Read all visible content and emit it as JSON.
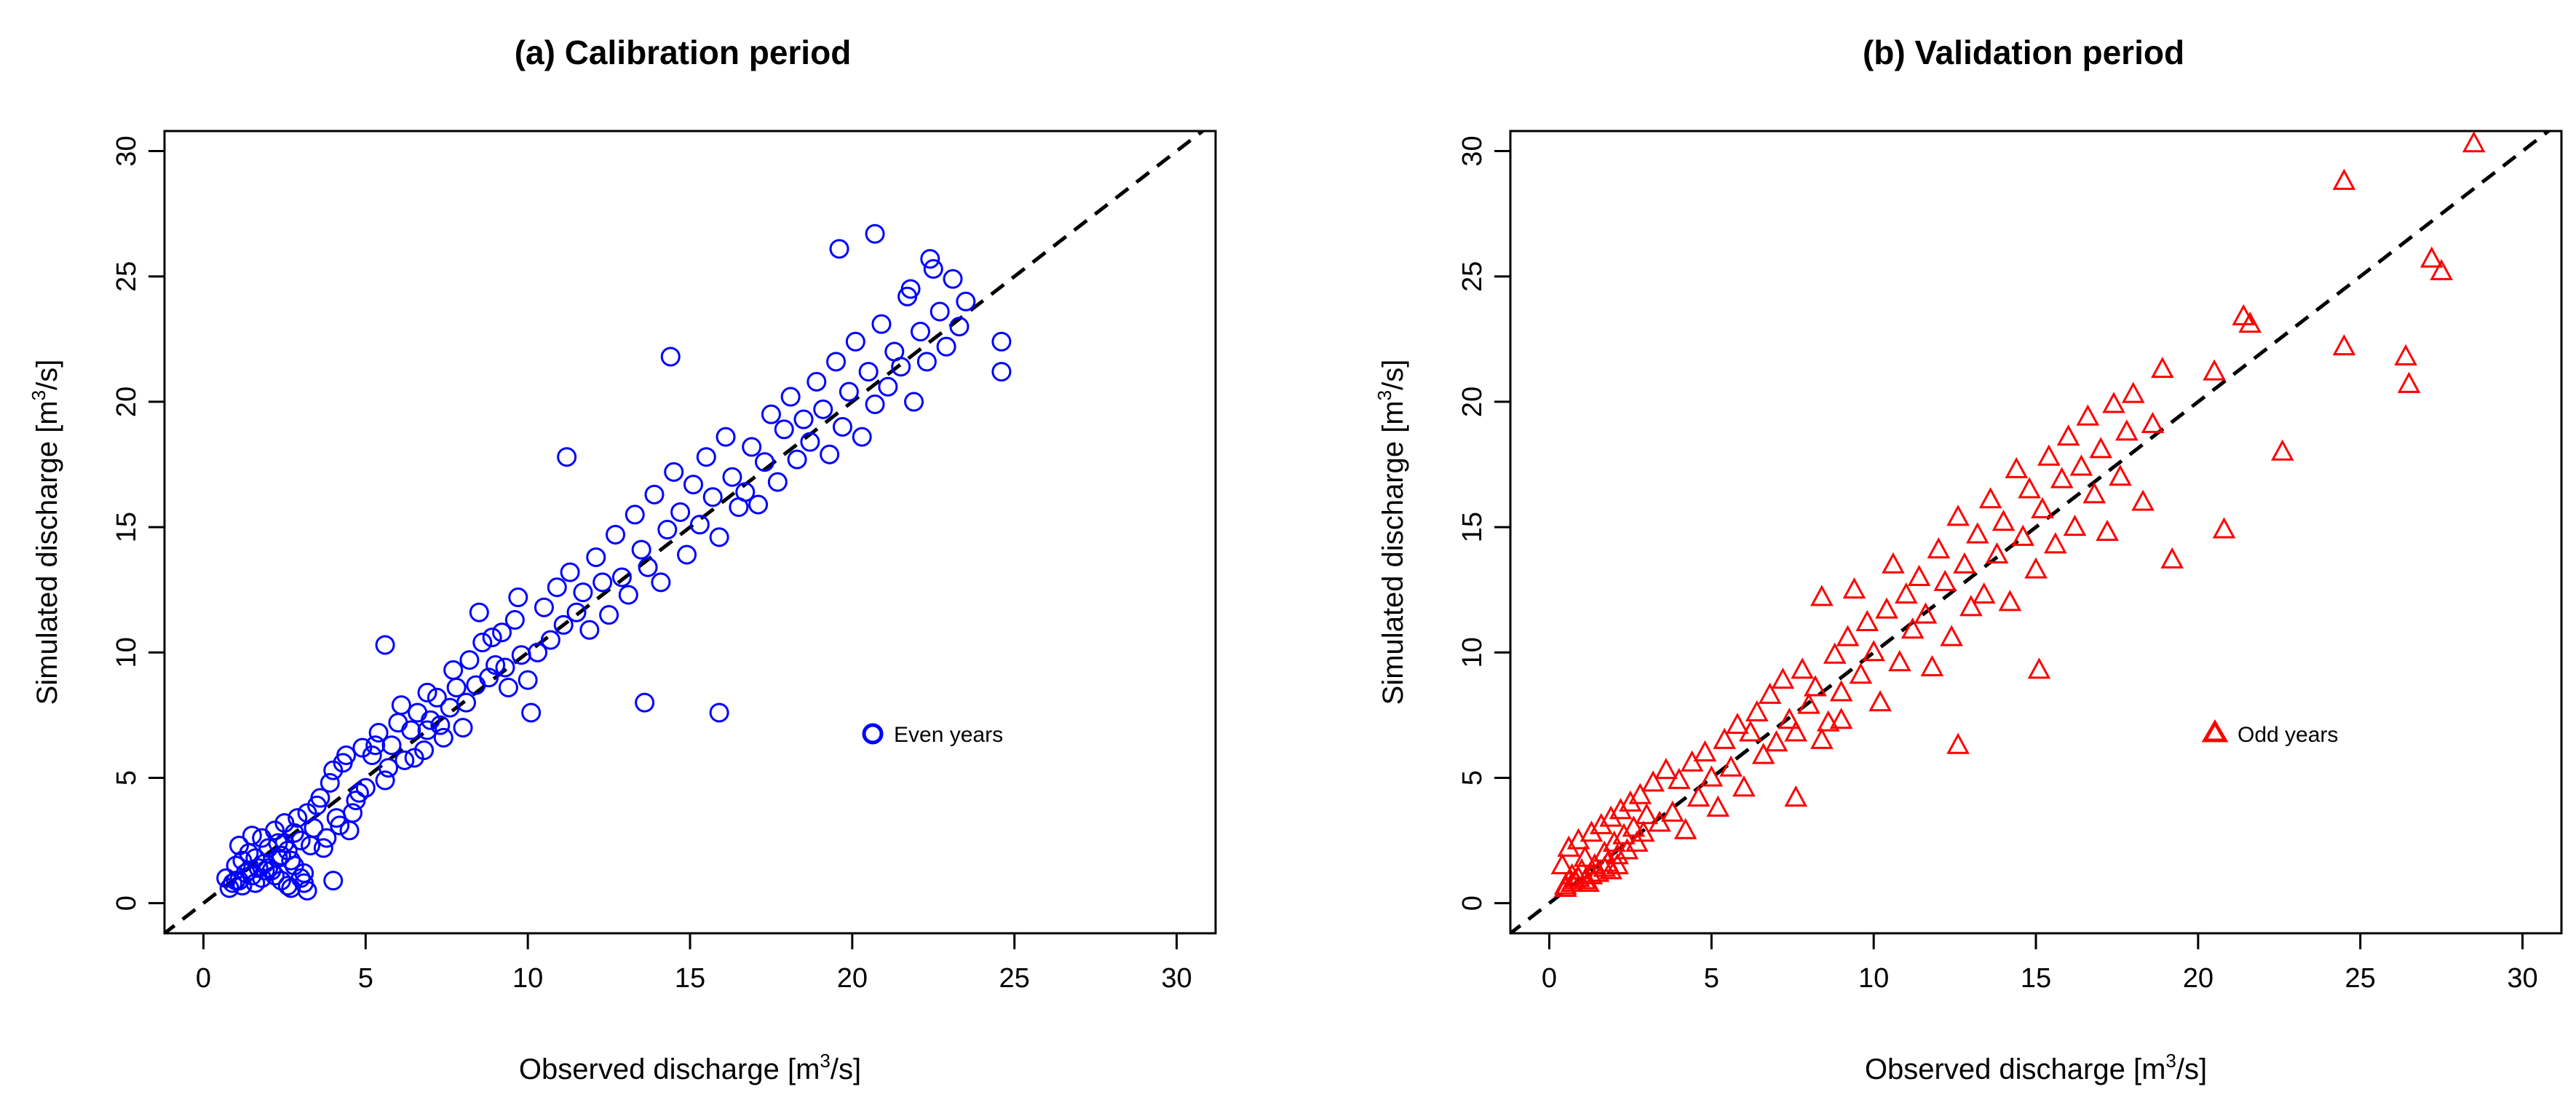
{
  "chart_data": [
    {
      "type": "scatter",
      "title": "(a) Calibration period",
      "xlabel": "Observed discharge [m",
      "ylabel": "Simulated discharge [m",
      "unit_sup": "3",
      "unit_tail": "/s]",
      "xlim": [
        -1.2,
        31.2
      ],
      "ylim": [
        -1.2,
        30.8
      ],
      "xticks": [
        0,
        5,
        10,
        15,
        20,
        25,
        30
      ],
      "yticks": [
        0,
        5,
        10,
        15,
        20,
        25,
        30
      ],
      "xtick_labels": [
        "0",
        "5",
        "10",
        "15",
        "20",
        "25",
        "30"
      ],
      "ytick_labels": [
        "0",
        "5",
        "10",
        "15",
        "20",
        "25",
        "30"
      ],
      "reference_line": "1:1",
      "marker": "circle",
      "color": "#0000ff",
      "legend": {
        "label": "Even years",
        "position": "right"
      },
      "series": [
        {
          "name": "Even years",
          "x": [
            0.7,
            0.9,
            1.0,
            1.1,
            1.2,
            1.3,
            1.4,
            1.5,
            1.6,
            1.7,
            1.8,
            1.9,
            2.0,
            2.1,
            2.2,
            2.3,
            2.4,
            2.5,
            2.6,
            2.7,
            2.8,
            2.9,
            3.0,
            3.1,
            3.2,
            3.3,
            3.4,
            3.5,
            0.8,
            1.0,
            1.2,
            1.4,
            1.6,
            1.8,
            2.0,
            2.2,
            2.4,
            2.6,
            2.8,
            3.0,
            1.1,
            1.5,
            1.9,
            2.3,
            2.7,
            3.1,
            3.6,
            3.8,
            4.0,
            4.2,
            4.4,
            4.6,
            4.8,
            3.7,
            3.9,
            4.1,
            4.3,
            4.5,
            4.7,
            4.9,
            5.0,
            5.2,
            5.4,
            5.6,
            5.8,
            6.0,
            6.2,
            6.4,
            6.6,
            6.8,
            7.0,
            7.2,
            7.4,
            7.6,
            7.8,
            8.0,
            5.3,
            5.7,
            6.1,
            6.5,
            6.9,
            7.3,
            7.7,
            8.1,
            8.2,
            8.4,
            8.6,
            8.8,
            9.0,
            9.2,
            9.4,
            9.6,
            9.8,
            10.0,
            8.5,
            8.9,
            9.3,
            9.7,
            10.1,
            10.3,
            10.5,
            10.7,
            10.9,
            11.1,
            11.3,
            11.5,
            11.7,
            11.9,
            12.1,
            12.3,
            12.5,
            12.7,
            12.9,
            13.1,
            13.3,
            13.5,
            13.7,
            13.9,
            14.1,
            14.3,
            14.5,
            14.7,
            14.9,
            15.1,
            15.3,
            15.5,
            15.7,
            15.9,
            16.1,
            16.3,
            16.5,
            16.7,
            16.9,
            17.1,
            17.3,
            17.5,
            17.7,
            17.9,
            18.1,
            18.3,
            18.5,
            18.7,
            18.9,
            19.1,
            19.3,
            19.5,
            19.7,
            19.9,
            20.1,
            20.3,
            20.5,
            20.7,
            20.9,
            21.1,
            21.3,
            21.5,
            21.7,
            21.9,
            22.1,
            22.3,
            22.5,
            22.7,
            22.9,
            23.1,
            23.3,
            23.5,
            24.6,
            24.6,
            20.7,
            22.4,
            21.8,
            19.6,
            14.4,
            11.2,
            15.9,
            13.6,
            6.9,
            5.6,
            2.5,
            3.2,
            4.0
          ],
          "y": [
            1.0,
            0.8,
            1.5,
            0.9,
            1.7,
            1.2,
            2.0,
            1.1,
            1.8,
            1.4,
            2.6,
            1.6,
            2.2,
            1.3,
            2.9,
            2.4,
            1.9,
            3.2,
            2.1,
            1.7,
            2.8,
            3.4,
            2.5,
            1.2,
            3.6,
            2.3,
            3.0,
            3.9,
            0.6,
            0.9,
            0.7,
            1.3,
            0.8,
            1.0,
            1.4,
            1.1,
            0.9,
            0.7,
            1.5,
            1.0,
            2.3,
            2.7,
            1.3,
            1.8,
            0.6,
            0.8,
            4.2,
            2.6,
            5.3,
            3.1,
            5.9,
            3.6,
            4.4,
            2.2,
            4.8,
            3.4,
            5.6,
            2.9,
            4.1,
            6.2,
            4.6,
            5.9,
            6.8,
            4.9,
            6.3,
            7.2,
            5.7,
            6.9,
            7.6,
            6.1,
            7.3,
            8.2,
            6.6,
            7.8,
            8.6,
            7.0,
            6.3,
            5.4,
            7.9,
            5.8,
            8.4,
            7.1,
            9.3,
            8.0,
            9.7,
            8.7,
            10.4,
            9.0,
            9.5,
            10.8,
            8.6,
            11.3,
            9.9,
            8.9,
            11.6,
            10.6,
            9.4,
            12.2,
            7.6,
            10.0,
            11.8,
            10.5,
            12.6,
            11.1,
            13.2,
            11.6,
            12.4,
            10.9,
            13.8,
            12.8,
            11.5,
            14.7,
            13.0,
            12.3,
            15.5,
            14.1,
            13.4,
            16.3,
            12.8,
            14.9,
            17.2,
            15.6,
            13.9,
            16.7,
            15.1,
            17.8,
            16.2,
            14.6,
            18.6,
            17.0,
            15.8,
            16.4,
            18.2,
            15.9,
            17.6,
            19.5,
            16.8,
            18.9,
            20.2,
            17.7,
            19.3,
            18.4,
            20.8,
            19.7,
            17.9,
            21.6,
            19.0,
            20.4,
            22.4,
            18.6,
            21.2,
            19.9,
            23.1,
            20.6,
            22.0,
            21.4,
            24.2,
            20.0,
            22.8,
            21.6,
            25.3,
            23.6,
            22.2,
            24.9,
            23.0,
            24.0,
            21.2,
            22.4,
            26.7,
            25.7,
            24.5,
            26.1,
            21.8,
            17.8,
            7.6,
            8.0,
            6.9,
            10.3,
            2.4,
            0.5,
            0.9
          ]
        }
      ]
    },
    {
      "type": "scatter",
      "title": "(b) Validation period",
      "xlabel": "Observed discharge [m",
      "ylabel": "Simulated discharge [m",
      "unit_sup": "3",
      "unit_tail": "/s]",
      "xlim": [
        -1.2,
        31.2
      ],
      "ylim": [
        -1.2,
        30.8
      ],
      "xticks": [
        0,
        5,
        10,
        15,
        20,
        25,
        30
      ],
      "yticks": [
        0,
        5,
        10,
        15,
        20,
        25,
        30
      ],
      "xtick_labels": [
        "0",
        "5",
        "10",
        "15",
        "20",
        "25",
        "30"
      ],
      "ytick_labels": [
        "0",
        "5",
        "10",
        "15",
        "20",
        "25",
        "30"
      ],
      "reference_line": "1:1",
      "marker": "triangle",
      "color": "#ff0000",
      "legend": {
        "label": "Odd years",
        "position": "right"
      },
      "series": [
        {
          "name": "Odd years",
          "x": [
            0.4,
            0.5,
            0.6,
            0.7,
            0.8,
            0.9,
            1.0,
            1.1,
            1.2,
            1.3,
            1.4,
            1.5,
            1.6,
            1.7,
            1.8,
            1.9,
            2.0,
            2.1,
            2.2,
            2.3,
            2.4,
            2.5,
            2.6,
            2.7,
            2.8,
            2.9,
            3.0,
            0.5,
            0.7,
            0.9,
            1.1,
            1.3,
            1.5,
            1.7,
            1.9,
            2.1,
            3.2,
            3.4,
            3.6,
            3.8,
            4.0,
            4.2,
            4.4,
            4.6,
            4.8,
            5.0,
            5.2,
            5.4,
            5.6,
            5.8,
            6.0,
            6.2,
            6.4,
            6.6,
            6.8,
            7.0,
            7.2,
            7.4,
            7.6,
            7.8,
            8.0,
            8.2,
            8.4,
            8.6,
            8.8,
            9.0,
            9.2,
            9.4,
            9.6,
            9.8,
            10.0,
            10.2,
            10.4,
            10.6,
            10.8,
            11.0,
            11.2,
            11.4,
            11.6,
            11.8,
            12.0,
            12.2,
            12.4,
            12.6,
            12.8,
            13.0,
            13.2,
            13.4,
            13.6,
            13.8,
            14.0,
            14.2,
            14.4,
            14.6,
            14.8,
            15.0,
            15.2,
            15.4,
            15.6,
            15.8,
            16.0,
            16.2,
            16.4,
            16.6,
            16.8,
            17.0,
            17.2,
            17.4,
            17.6,
            17.8,
            18.0,
            18.3,
            18.6,
            18.9,
            19.2,
            20.5,
            20.8,
            21.4,
            21.6,
            22.6,
            24.5,
            24.5,
            26.4,
            26.5,
            27.2,
            27.5,
            28.5,
            12.6,
            15.1,
            9.0,
            8.4,
            7.6
          ],
          "y": [
            1.5,
            0.7,
            2.2,
            1.1,
            0.9,
            2.5,
            1.3,
            1.8,
            0.8,
            2.8,
            1.5,
            1.2,
            3.1,
            2.0,
            1.6,
            3.4,
            2.4,
            1.9,
            3.7,
            2.7,
            2.1,
            4.0,
            3.0,
            2.4,
            4.3,
            2.8,
            3.5,
            0.6,
            0.8,
            1.0,
            0.9,
            1.1,
            1.2,
            1.4,
            1.3,
            1.5,
            4.8,
            3.2,
            5.3,
            3.6,
            4.9,
            2.9,
            5.6,
            4.2,
            6.0,
            5.0,
            3.8,
            6.5,
            5.4,
            7.1,
            4.6,
            6.8,
            7.6,
            5.9,
            8.3,
            6.4,
            8.9,
            7.3,
            6.8,
            9.3,
            7.9,
            8.6,
            12.2,
            7.2,
            9.9,
            8.4,
            10.6,
            12.5,
            9.1,
            11.2,
            10.0,
            8.0,
            11.7,
            13.5,
            9.6,
            12.3,
            10.9,
            13.0,
            11.5,
            9.4,
            14.1,
            12.8,
            10.6,
            15.4,
            13.5,
            11.8,
            14.7,
            12.3,
            16.1,
            13.9,
            15.2,
            12.0,
            17.3,
            14.6,
            16.5,
            13.3,
            15.7,
            17.8,
            14.3,
            16.9,
            18.6,
            15.0,
            17.4,
            19.4,
            16.3,
            18.1,
            14.8,
            19.9,
            17.0,
            18.8,
            20.3,
            16.0,
            19.1,
            21.3,
            13.7,
            21.2,
            14.9,
            23.4,
            23.1,
            18.0,
            28.8,
            22.2,
            21.8,
            20.7,
            25.7,
            25.2,
            30.3,
            6.3,
            9.3,
            7.3,
            6.5,
            4.2
          ]
        }
      ]
    }
  ]
}
